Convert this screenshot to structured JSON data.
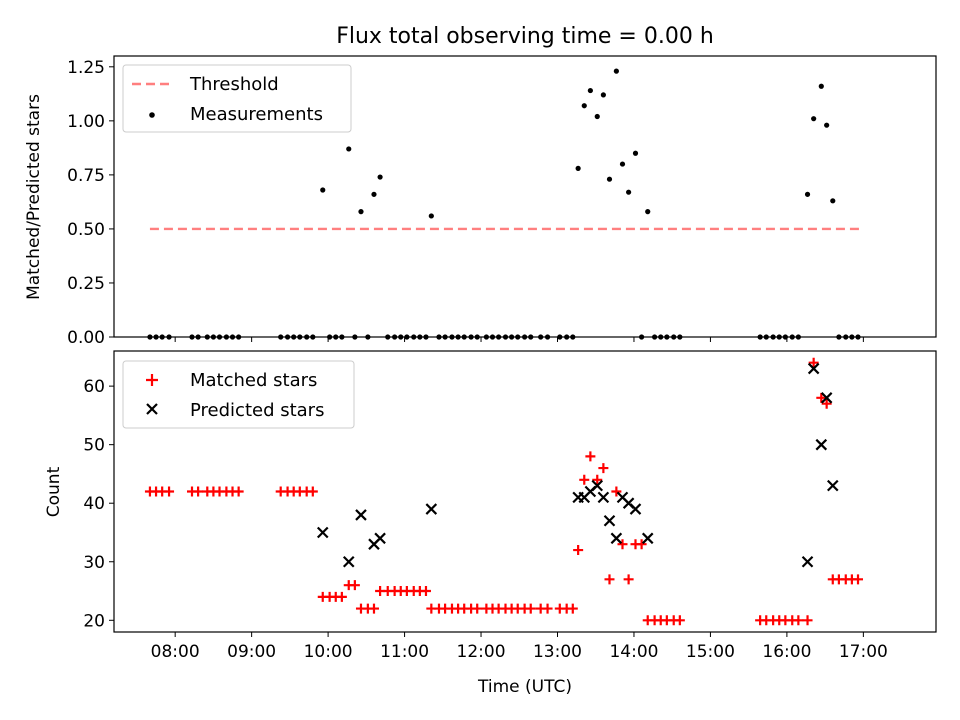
{
  "title": "Flux total observing time = 0.00 h",
  "xlabel": "Time (UTC)",
  "colors": {
    "threshold": "#ff7f7f",
    "measurement": "#000000",
    "matched": "#ff0000",
    "predicted": "#000000"
  },
  "x_ticks": [
    "08:00",
    "09:00",
    "10:00",
    "11:00",
    "12:00",
    "13:00",
    "14:00",
    "15:00",
    "16:00",
    "17:00"
  ],
  "chart_data": [
    {
      "type": "scatter",
      "ylabel": "Matched/Predicted stars",
      "xlim_hours": [
        7.2,
        17.95
      ],
      "ylim": [
        0,
        1.3
      ],
      "y_ticks": [
        "0.00",
        "0.25",
        "0.50",
        "0.75",
        "1.00",
        "1.25"
      ],
      "legend_placement": "top-left",
      "threshold": {
        "name": "Threshold",
        "value": 0.5,
        "x_range_hours": [
          7.67,
          16.95
        ]
      },
      "measurements_name": "Measurements",
      "measurements": [
        {
          "t": 7.67,
          "v": 0
        },
        {
          "t": 7.75,
          "v": 0
        },
        {
          "t": 7.83,
          "v": 0
        },
        {
          "t": 7.92,
          "v": 0
        },
        {
          "t": 8.22,
          "v": 0
        },
        {
          "t": 8.3,
          "v": 0
        },
        {
          "t": 8.42,
          "v": 0
        },
        {
          "t": 8.5,
          "v": 0
        },
        {
          "t": 8.58,
          "v": 0
        },
        {
          "t": 8.67,
          "v": 0
        },
        {
          "t": 8.75,
          "v": 0
        },
        {
          "t": 8.83,
          "v": 0
        },
        {
          "t": 9.38,
          "v": 0
        },
        {
          "t": 9.47,
          "v": 0
        },
        {
          "t": 9.55,
          "v": 0
        },
        {
          "t": 9.63,
          "v": 0
        },
        {
          "t": 9.72,
          "v": 0
        },
        {
          "t": 9.8,
          "v": 0
        },
        {
          "t": 9.93,
          "v": 0.68
        },
        {
          "t": 10.02,
          "v": 0
        },
        {
          "t": 10.1,
          "v": 0
        },
        {
          "t": 10.18,
          "v": 0
        },
        {
          "t": 10.27,
          "v": 0.87
        },
        {
          "t": 10.35,
          "v": 0
        },
        {
          "t": 10.43,
          "v": 0.58
        },
        {
          "t": 10.52,
          "v": 0
        },
        {
          "t": 10.6,
          "v": 0.66
        },
        {
          "t": 10.68,
          "v": 0.74
        },
        {
          "t": 10.78,
          "v": 0
        },
        {
          "t": 10.87,
          "v": 0
        },
        {
          "t": 10.95,
          "v": 0
        },
        {
          "t": 11.03,
          "v": 0
        },
        {
          "t": 11.12,
          "v": 0
        },
        {
          "t": 11.2,
          "v": 0
        },
        {
          "t": 11.28,
          "v": 0
        },
        {
          "t": 11.35,
          "v": 0.56
        },
        {
          "t": 11.45,
          "v": 0
        },
        {
          "t": 11.53,
          "v": 0
        },
        {
          "t": 11.62,
          "v": 0
        },
        {
          "t": 11.7,
          "v": 0
        },
        {
          "t": 11.78,
          "v": 0
        },
        {
          "t": 11.87,
          "v": 0
        },
        {
          "t": 11.95,
          "v": 0
        },
        {
          "t": 12.07,
          "v": 0
        },
        {
          "t": 12.15,
          "v": 0
        },
        {
          "t": 12.23,
          "v": 0
        },
        {
          "t": 12.32,
          "v": 0
        },
        {
          "t": 12.4,
          "v": 0
        },
        {
          "t": 12.48,
          "v": 0
        },
        {
          "t": 12.57,
          "v": 0
        },
        {
          "t": 12.65,
          "v": 0
        },
        {
          "t": 12.78,
          "v": 0
        },
        {
          "t": 12.87,
          "v": 0
        },
        {
          "t": 13.03,
          "v": 0
        },
        {
          "t": 13.12,
          "v": 0
        },
        {
          "t": 13.2,
          "v": 0
        },
        {
          "t": 13.27,
          "v": 0.78
        },
        {
          "t": 13.35,
          "v": 1.07
        },
        {
          "t": 13.43,
          "v": 1.14
        },
        {
          "t": 13.52,
          "v": 1.02
        },
        {
          "t": 13.6,
          "v": 1.12
        },
        {
          "t": 13.68,
          "v": 0.73
        },
        {
          "t": 13.77,
          "v": 1.23
        },
        {
          "t": 13.85,
          "v": 0.8
        },
        {
          "t": 13.93,
          "v": 0.67
        },
        {
          "t": 14.02,
          "v": 0.85
        },
        {
          "t": 14.1,
          "v": 0
        },
        {
          "t": 14.18,
          "v": 0.58
        },
        {
          "t": 14.27,
          "v": 0
        },
        {
          "t": 14.35,
          "v": 0
        },
        {
          "t": 14.43,
          "v": 0
        },
        {
          "t": 14.52,
          "v": 0
        },
        {
          "t": 14.6,
          "v": 0
        },
        {
          "t": 15.65,
          "v": 0
        },
        {
          "t": 15.73,
          "v": 0
        },
        {
          "t": 15.82,
          "v": 0
        },
        {
          "t": 15.9,
          "v": 0
        },
        {
          "t": 15.98,
          "v": 0
        },
        {
          "t": 16.07,
          "v": 0
        },
        {
          "t": 16.15,
          "v": 0
        },
        {
          "t": 16.27,
          "v": 0.66
        },
        {
          "t": 16.35,
          "v": 1.01
        },
        {
          "t": 16.45,
          "v": 1.16
        },
        {
          "t": 16.52,
          "v": 0.98
        },
        {
          "t": 16.6,
          "v": 0.63
        },
        {
          "t": 16.68,
          "v": 0
        },
        {
          "t": 16.77,
          "v": 0
        },
        {
          "t": 16.85,
          "v": 0
        },
        {
          "t": 16.93,
          "v": 0
        }
      ]
    },
    {
      "type": "scatter",
      "ylabel": "Count",
      "xlim_hours": [
        7.2,
        17.95
      ],
      "ylim": [
        18,
        66
      ],
      "y_ticks": [
        "20",
        "30",
        "40",
        "50",
        "60"
      ],
      "y_tick_values": [
        20,
        30,
        40,
        50,
        60
      ],
      "legend_placement": "top-left",
      "series": [
        {
          "name": "Matched stars",
          "marker": "plus",
          "points": [
            [
              7.67,
              42
            ],
            [
              7.75,
              42
            ],
            [
              7.83,
              42
            ],
            [
              7.92,
              42
            ],
            [
              8.22,
              42
            ],
            [
              8.3,
              42
            ],
            [
              8.42,
              42
            ],
            [
              8.5,
              42
            ],
            [
              8.58,
              42
            ],
            [
              8.67,
              42
            ],
            [
              8.75,
              42
            ],
            [
              8.83,
              42
            ],
            [
              9.38,
              42
            ],
            [
              9.47,
              42
            ],
            [
              9.55,
              42
            ],
            [
              9.63,
              42
            ],
            [
              9.72,
              42
            ],
            [
              9.8,
              42
            ],
            [
              9.93,
              24
            ],
            [
              10.02,
              24
            ],
            [
              10.1,
              24
            ],
            [
              10.18,
              24
            ],
            [
              10.27,
              26
            ],
            [
              10.35,
              26
            ],
            [
              10.43,
              22
            ],
            [
              10.52,
              22
            ],
            [
              10.6,
              22
            ],
            [
              10.68,
              25
            ],
            [
              10.78,
              25
            ],
            [
              10.87,
              25
            ],
            [
              10.95,
              25
            ],
            [
              11.03,
              25
            ],
            [
              11.12,
              25
            ],
            [
              11.2,
              25
            ],
            [
              11.28,
              25
            ],
            [
              11.35,
              22
            ],
            [
              11.45,
              22
            ],
            [
              11.53,
              22
            ],
            [
              11.62,
              22
            ],
            [
              11.7,
              22
            ],
            [
              11.78,
              22
            ],
            [
              11.87,
              22
            ],
            [
              11.95,
              22
            ],
            [
              12.07,
              22
            ],
            [
              12.15,
              22
            ],
            [
              12.23,
              22
            ],
            [
              12.32,
              22
            ],
            [
              12.4,
              22
            ],
            [
              12.48,
              22
            ],
            [
              12.57,
              22
            ],
            [
              12.65,
              22
            ],
            [
              12.78,
              22
            ],
            [
              12.87,
              22
            ],
            [
              13.03,
              22
            ],
            [
              13.12,
              22
            ],
            [
              13.2,
              22
            ],
            [
              13.27,
              32
            ],
            [
              13.35,
              44
            ],
            [
              13.43,
              48
            ],
            [
              13.52,
              44
            ],
            [
              13.6,
              46
            ],
            [
              13.68,
              27
            ],
            [
              13.77,
              42
            ],
            [
              13.85,
              33
            ],
            [
              13.93,
              27
            ],
            [
              14.02,
              33
            ],
            [
              14.1,
              33
            ],
            [
              14.18,
              20
            ],
            [
              14.27,
              20
            ],
            [
              14.35,
              20
            ],
            [
              14.43,
              20
            ],
            [
              14.52,
              20
            ],
            [
              14.6,
              20
            ],
            [
              15.65,
              20
            ],
            [
              15.73,
              20
            ],
            [
              15.82,
              20
            ],
            [
              15.9,
              20
            ],
            [
              15.98,
              20
            ],
            [
              16.07,
              20
            ],
            [
              16.15,
              20
            ],
            [
              16.27,
              20
            ],
            [
              16.35,
              64
            ],
            [
              16.45,
              58
            ],
            [
              16.52,
              57
            ],
            [
              16.6,
              27
            ],
            [
              16.68,
              27
            ],
            [
              16.77,
              27
            ],
            [
              16.85,
              27
            ],
            [
              16.93,
              27
            ]
          ]
        },
        {
          "name": "Predicted stars",
          "marker": "x",
          "points": [
            [
              9.93,
              35
            ],
            [
              10.27,
              30
            ],
            [
              10.43,
              38
            ],
            [
              10.6,
              33
            ],
            [
              10.68,
              34
            ],
            [
              11.35,
              39
            ],
            [
              13.27,
              41
            ],
            [
              13.35,
              41
            ],
            [
              13.43,
              42
            ],
            [
              13.52,
              43
            ],
            [
              13.6,
              41
            ],
            [
              13.68,
              37
            ],
            [
              13.77,
              34
            ],
            [
              13.85,
              41
            ],
            [
              13.93,
              40
            ],
            [
              14.02,
              39
            ],
            [
              14.18,
              34
            ],
            [
              16.27,
              30
            ],
            [
              16.35,
              63
            ],
            [
              16.45,
              50
            ],
            [
              16.52,
              58
            ],
            [
              16.6,
              43
            ]
          ]
        }
      ]
    }
  ]
}
